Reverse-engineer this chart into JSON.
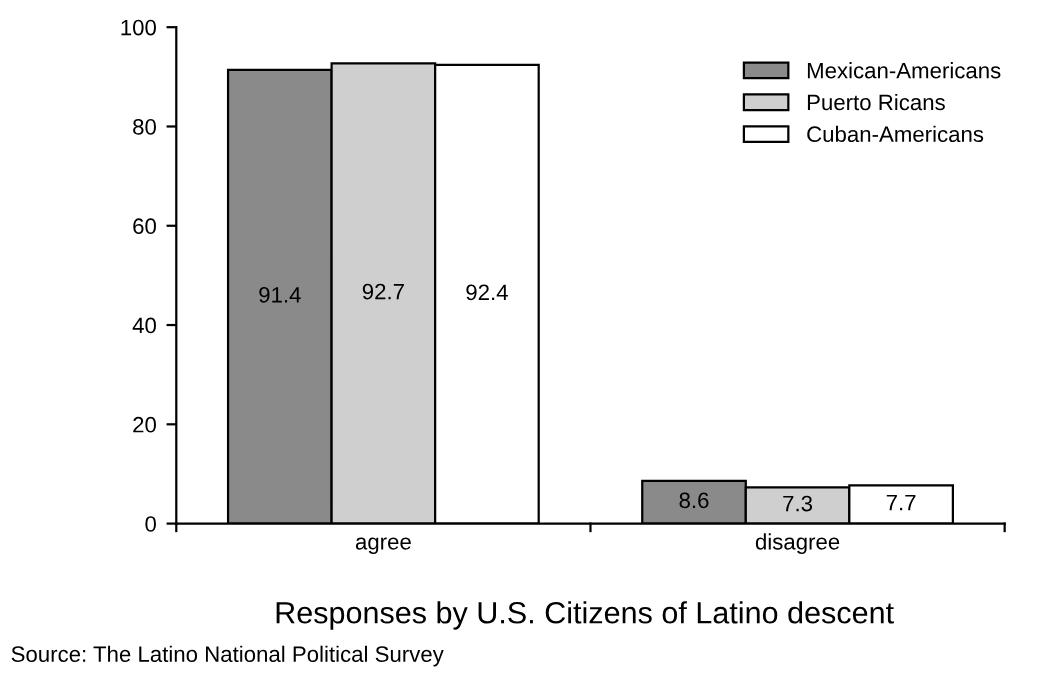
{
  "chart_data": {
    "type": "bar",
    "title": "Responses by U.S. Citizens of Latino descent",
    "categories": [
      "agree",
      "disagree"
    ],
    "series": [
      {
        "name": "Mexican-Americans",
        "color": "#8a8a8a",
        "values": [
          91.4,
          8.6
        ]
      },
      {
        "name": "Puerto Ricans",
        "color": "#cfcfcf",
        "values": [
          92.7,
          7.3
        ]
      },
      {
        "name": "Cuban-Americans",
        "color": "#ffffff",
        "values": [
          92.4,
          7.7
        ]
      }
    ],
    "ylim": [
      0,
      100
    ],
    "yticks": [
      0,
      20,
      40,
      60,
      80,
      100
    ],
    "grid": false,
    "legend": "top right",
    "data_labels": true,
    "annotations": [
      "Source: The Latino National Political Survey"
    ]
  }
}
